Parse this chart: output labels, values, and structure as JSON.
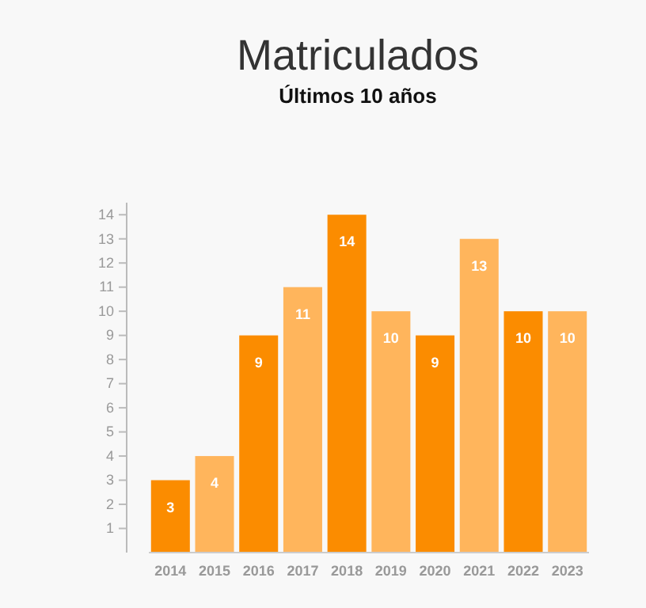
{
  "chart_data": {
    "type": "bar",
    "title": "Matriculados",
    "subtitle": "Últimos 10 años",
    "categories": [
      "2014",
      "2015",
      "2016",
      "2017",
      "2018",
      "2019",
      "2020",
      "2021",
      "2022",
      "2023"
    ],
    "values": [
      3,
      4,
      9,
      11,
      14,
      10,
      9,
      13,
      10,
      10
    ],
    "colors": [
      "#fb8c00",
      "#ffb55c",
      "#fb8c00",
      "#ffb55c",
      "#fb8c00",
      "#ffb55c",
      "#fb8c00",
      "#ffb55c",
      "#fb8c00",
      "#ffb55c"
    ],
    "ylim": [
      0,
      14.5
    ],
    "yticks": [
      1,
      2,
      3,
      4,
      5,
      6,
      7,
      8,
      9,
      10,
      11,
      12,
      13,
      14
    ],
    "data_labels": true,
    "grid": false
  }
}
